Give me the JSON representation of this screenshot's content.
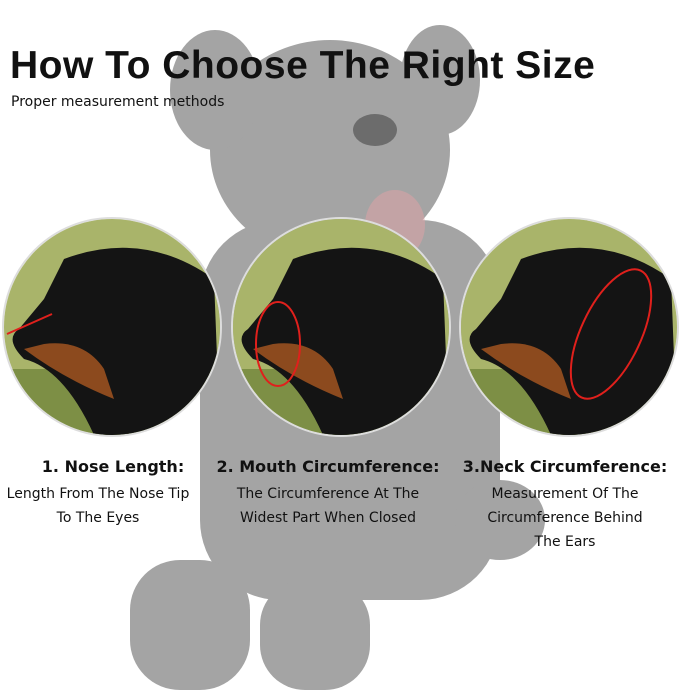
{
  "title": "How To Choose The Right Size",
  "subtitle": "Proper measurement methods",
  "colors": {
    "measure_line": "#e0201c",
    "text": "#111111"
  },
  "steps": [
    {
      "heading": "1. Nose Length:",
      "description": "Length From The Nose Tip To The Eyes",
      "image": "dog-head-nose-length"
    },
    {
      "heading": "2. Mouth Circumference:",
      "description": "The Circumference At The Widest Part When Closed",
      "image": "dog-head-mouth-circumference"
    },
    {
      "heading": "3.Neck Circumference:",
      "description": "Measurement Of The Circumference Behind The Ears",
      "image": "dog-head-neck-circumference"
    }
  ]
}
